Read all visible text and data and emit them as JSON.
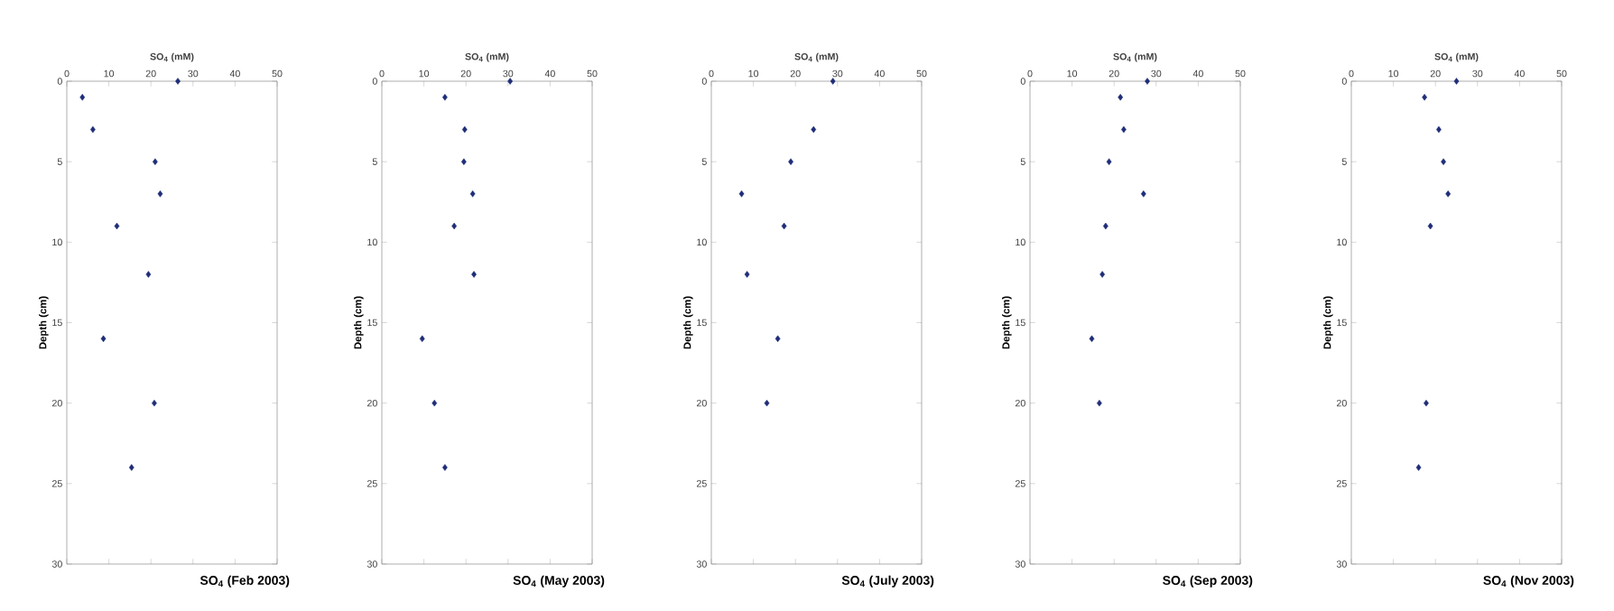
{
  "chart_data": [
    {
      "type": "scatter",
      "title": "SO$_{4}$ (Feb 2003)",
      "xlabel": "SO$_{4}$ (mM)",
      "ylabel": "Depth (cm)",
      "color": "#1f2d78",
      "marker": "diamond",
      "xlim": [
        0,
        50
      ],
      "xticks": [
        0,
        10,
        20,
        30,
        40,
        50
      ],
      "ylim": [
        30,
        0
      ],
      "yticks": [
        0,
        5,
        10,
        15,
        20,
        25,
        30
      ],
      "x": [
        26.4,
        3.7,
        6.2,
        21,
        22.2,
        11.9,
        19.4,
        8.7,
        20.8,
        15.4
      ],
      "values": [
        0,
        1,
        3,
        5,
        7,
        9,
        12,
        16,
        20,
        24
      ]
    },
    {
      "type": "scatter",
      "title": "SO$_{4}$ (May 2003)",
      "xlabel": "SO$_{4}$ (mM)",
      "ylabel": "Depth (cm)",
      "color": "#1f2d78",
      "marker": "diamond",
      "xlim": [
        0,
        50
      ],
      "xticks": [
        0,
        10,
        20,
        30,
        40,
        50
      ],
      "ylim": [
        30,
        0
      ],
      "yticks": [
        0,
        5,
        10,
        15,
        20,
        25,
        30
      ],
      "x": [
        30.5,
        15,
        19.7,
        19.5,
        21.6,
        17.2,
        21.9,
        9.6,
        12.5,
        15
      ],
      "values": [
        0,
        1,
        3,
        5,
        7,
        9,
        12,
        16,
        20,
        24
      ]
    },
    {
      "type": "scatter",
      "title": "SO$_{4}$ (July 2003)",
      "xlabel": "SO$_{4}$ (mM)",
      "ylabel": "Depth (cm)",
      "color": "#1f2d78",
      "marker": "diamond",
      "xlim": [
        0,
        50
      ],
      "xticks": [
        0,
        10,
        20,
        30,
        40,
        50
      ],
      "ylim": [
        30,
        0
      ],
      "yticks": [
        0,
        5,
        10,
        15,
        20,
        25,
        30
      ],
      "x": [
        28.9,
        24.3,
        18.9,
        7.2,
        17.3,
        8.5,
        15.8,
        13.2
      ],
      "values": [
        0,
        3,
        5,
        7,
        9,
        12,
        16,
        20
      ]
    },
    {
      "type": "scatter",
      "title": "SO$_{4}$ (Sep 2003)",
      "xlabel": "SO$_{4}$ (mM)",
      "ylabel": "Depth (cm)",
      "color": "#1f2d78",
      "marker": "diamond",
      "xlim": [
        0,
        50
      ],
      "xticks": [
        0,
        10,
        20,
        30,
        40,
        50
      ],
      "ylim": [
        30,
        0
      ],
      "yticks": [
        0,
        5,
        10,
        15,
        20,
        25,
        30
      ],
      "x": [
        27.9,
        21.5,
        22.3,
        18.8,
        27,
        18,
        17.2,
        14.7,
        16.5
      ],
      "values": [
        0,
        1,
        3,
        5,
        7,
        9,
        12,
        16,
        20
      ]
    },
    {
      "type": "scatter",
      "title": "SO$_{4}$ (Nov 2003)",
      "xlabel": "SO$_{4}$ (mM)",
      "ylabel": "Depth (cm)",
      "color": "#1f2d78",
      "marker": "diamond",
      "xlim": [
        0,
        50
      ],
      "xticks": [
        0,
        10,
        20,
        30,
        40,
        50
      ],
      "ylim": [
        30,
        0
      ],
      "yticks": [
        0,
        5,
        10,
        15,
        20,
        25,
        30
      ],
      "x": [
        25,
        17.4,
        20.8,
        21.9,
        23,
        18.8,
        17.8,
        16
      ],
      "values": [
        0,
        1,
        3,
        5,
        7,
        9,
        20,
        24
      ]
    }
  ]
}
